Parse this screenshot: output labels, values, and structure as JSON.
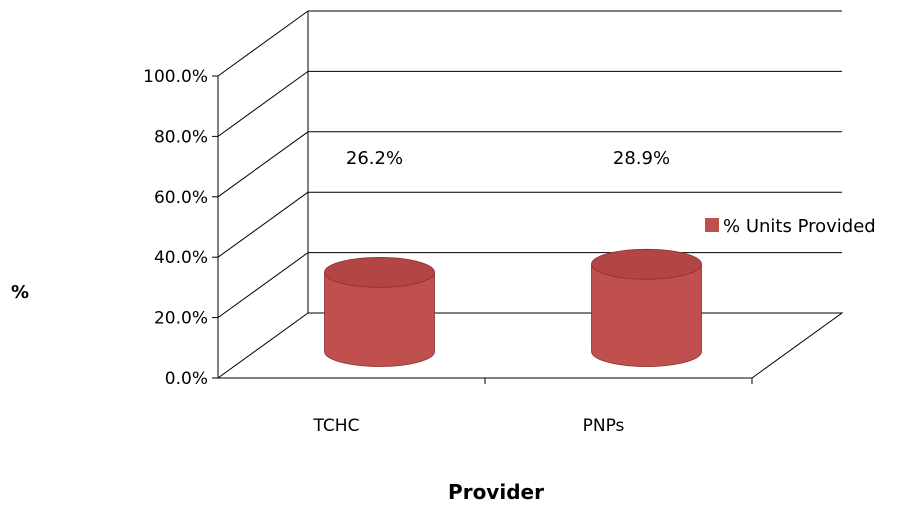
{
  "chart_data": {
    "type": "bar",
    "categories": [
      "TCHC",
      "PNPs"
    ],
    "series": [
      {
        "name": "% Units Provided",
        "values": [
          26.2,
          28.9
        ]
      }
    ],
    "data_labels": [
      "26.2%",
      "28.9%"
    ],
    "title": "",
    "xlabel": "Provider",
    "ylabel": "%",
    "ylim": [
      0,
      100
    ],
    "yticks": [
      "0.0%",
      "20.0%",
      "40.0%",
      "60.0%",
      "80.0%",
      "100.0%"
    ],
    "grid": true,
    "legend_position": "right",
    "style": "3d-cylinder",
    "colors": {
      "bar": "#c0504d",
      "bar_top": "#b34644",
      "bar_dark": "#8c2f2d",
      "grid": "#000000"
    }
  }
}
